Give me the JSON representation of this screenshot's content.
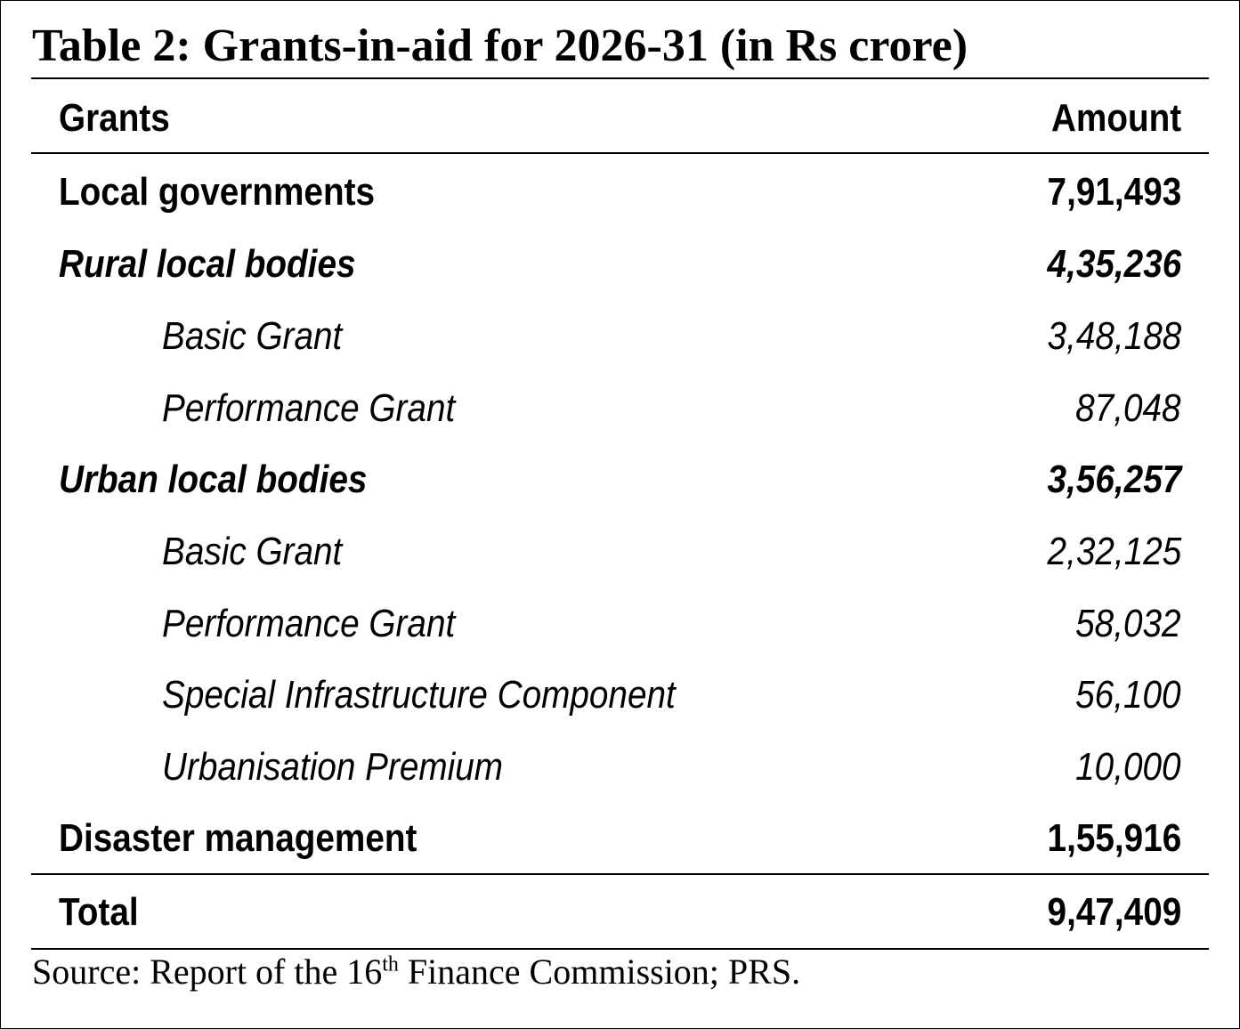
{
  "title": "Table 2: Grants-in-aid for 2026-31 (in Rs crore)",
  "header": {
    "col1": "Grants",
    "col2": "Amount"
  },
  "rows": [
    {
      "label": "Local governments",
      "amount": "7,91,493"
    },
    {
      "label": "Rural local bodies",
      "amount": "4,35,236"
    },
    {
      "label": "Basic Grant",
      "amount": "3,48,188"
    },
    {
      "label": "Performance Grant",
      "amount": "87,048"
    },
    {
      "label": "Urban local bodies",
      "amount": "3,56,257"
    },
    {
      "label": "Basic Grant",
      "amount": "2,32,125"
    },
    {
      "label": "Performance Grant",
      "amount": "58,032"
    },
    {
      "label": "Special Infrastructure Component",
      "amount": "56,100"
    },
    {
      "label": "Urbanisation Premium",
      "amount": "10,000"
    },
    {
      "label": "Disaster management",
      "amount": "1,55,916"
    }
  ],
  "total": {
    "label": "Total",
    "amount": "9,47,409"
  },
  "source": {
    "prefix": "Source: Report of the 16",
    "sup": "th",
    "suffix": " Finance Commission; PRS."
  }
}
